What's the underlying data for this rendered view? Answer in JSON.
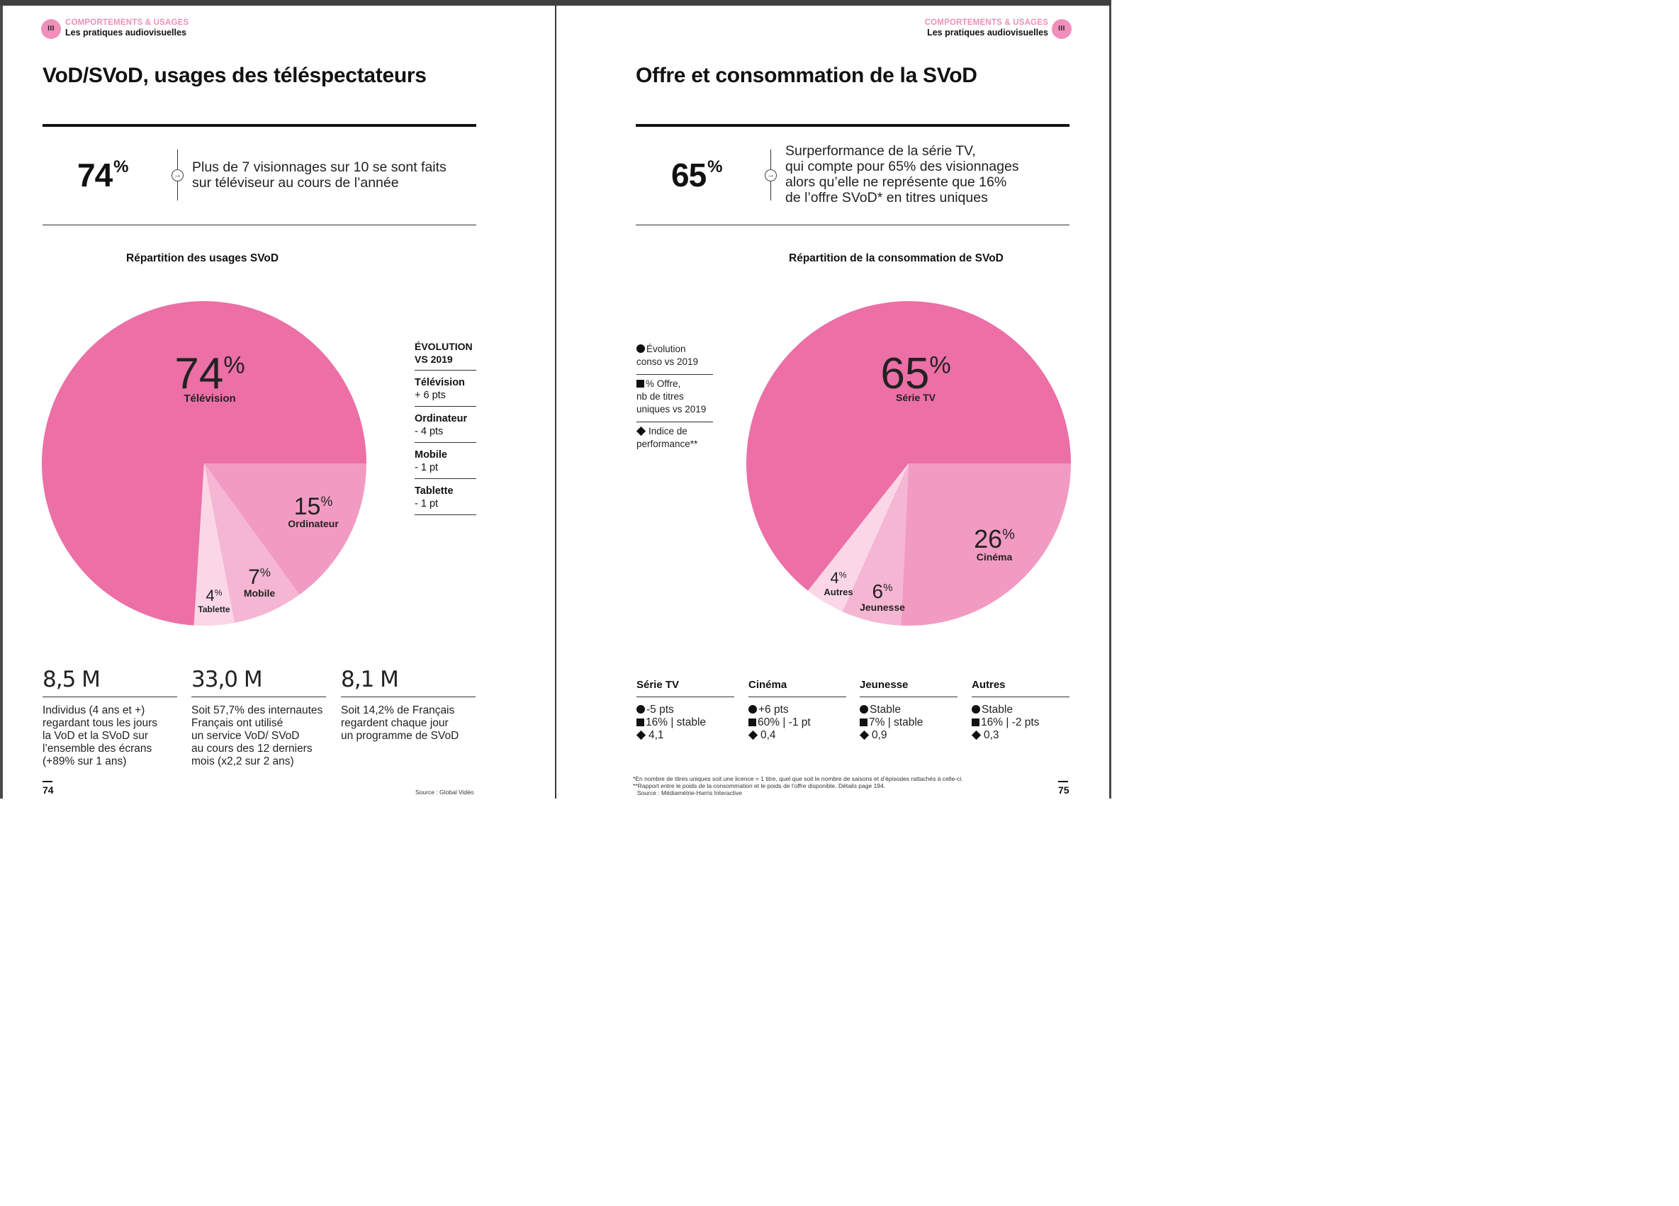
{
  "left": {
    "header": {
      "badge": "III",
      "category": "COMPORTEMENTS & USAGES",
      "subtitle": "Les pratiques audiovisuelles"
    },
    "title": "VoD/SVoD, usages des téléspectateurs",
    "kpi": {
      "value": "74",
      "unit": "%",
      "text_line1": "Plus de 7 visionnages sur 10 se sont faits",
      "text_line2": "sur téléviseur au cours de l’année"
    },
    "chart_title": "Répartition des usages SVoD",
    "evolution": {
      "head_line1": "ÉVOLUTION",
      "head_line2": "VS 2019",
      "rows": [
        {
          "label": "Télévision",
          "value": "+ 6 pts"
        },
        {
          "label": "Ordinateur",
          "value": "- 4 pts"
        },
        {
          "label": "Mobile",
          "value": "- 1 pt"
        },
        {
          "label": "Tablette",
          "value": "- 1 pt"
        }
      ]
    },
    "stats": [
      {
        "value": "8,5 M",
        "lines": [
          "Individus (4 ans et +)",
          "regardant tous les jours",
          "la VoD et la SVoD sur",
          "l’ensemble des écrans",
          "(+89% sur 1 ans)"
        ]
      },
      {
        "value": "33,0 M",
        "lines": [
          "Soit 57,7% des internautes",
          "Français ont utilisé",
          "un service VoD/ SVoD",
          "au cours des 12 derniers",
          "mois (x2,2 sur 2 ans)"
        ]
      },
      {
        "value": "8,1 M",
        "lines": [
          "Soit 14,2% de Français",
          "regardent chaque jour",
          "un programme de SVoD"
        ]
      }
    ],
    "page_number": "74",
    "source": "Source : Global Vidéo"
  },
  "right": {
    "header": {
      "badge": "III",
      "category": "COMPORTEMENTS & USAGES",
      "subtitle": "Les pratiques audiovisuelles"
    },
    "title": "Offre et consommation de la SVoD",
    "kpi": {
      "value": "65",
      "unit": "%",
      "text_line1": "Surperformance de la série TV,",
      "text_line2": "qui compte pour 65% des visionnages",
      "text_line3": "alors qu’elle ne représente que 16%",
      "text_line4": "de l’offre SVoD* en titres uniques"
    },
    "chart_title": "Répartition de la consommation de SVoD",
    "legend": [
      {
        "icon": "circle",
        "line1": "Évolution",
        "line2": "conso vs 2019"
      },
      {
        "icon": "square",
        "line1": "% Offre,",
        "line2": "nb de titres",
        "line3": "uniques vs 2019"
      },
      {
        "icon": "diamond",
        "line1": "Indice de",
        "line2": "performance**"
      }
    ],
    "categories": [
      {
        "name": "Série TV",
        "evolution": "-5 pts",
        "offre": "16% | stable",
        "indice": "4,1"
      },
      {
        "name": "Cinéma",
        "evolution": "+6 pts",
        "offre": "60% | -1 pt",
        "indice": "0,4"
      },
      {
        "name": "Jeunesse",
        "evolution": "Stable",
        "offre": "7% | stable",
        "indice": "0,9"
      },
      {
        "name": "Autres",
        "evolution": "Stable",
        "offre": "16% | -2 pts",
        "indice": "0,3"
      }
    ],
    "footnote_line1": "*En nombre de titres uniques soit une licence = 1 titre, quel que soit le nombre de saisons et d’épisodes rattachés à celle-ci.",
    "footnote_line2": "**Rapport entre le poids de la consommation et le poids de l’offre disponible. Détails page 194.",
    "footnote_line3": "Source : Médiamétrie-Harris Interactive",
    "page_number": "75"
  },
  "colors": {
    "pink_dark": "#ec6fa6",
    "pink_mid": "#f29bc2",
    "pink_light": "#f5b6d3",
    "pink_pale": "#fad6e6",
    "badge": "#ef8fba"
  },
  "chart_data": [
    {
      "type": "pie",
      "title": "Répartition des usages SVoD",
      "categories": [
        "Télévision",
        "Ordinateur",
        "Mobile",
        "Tablette"
      ],
      "values": [
        74,
        15,
        7,
        4
      ],
      "unit": "%"
    },
    {
      "type": "pie",
      "title": "Répartition de la consommation de SVoD",
      "categories": [
        "Série TV",
        "Cinéma",
        "Jeunesse",
        "Autres"
      ],
      "values": [
        65,
        26,
        6,
        4
      ],
      "unit": "%"
    }
  ]
}
